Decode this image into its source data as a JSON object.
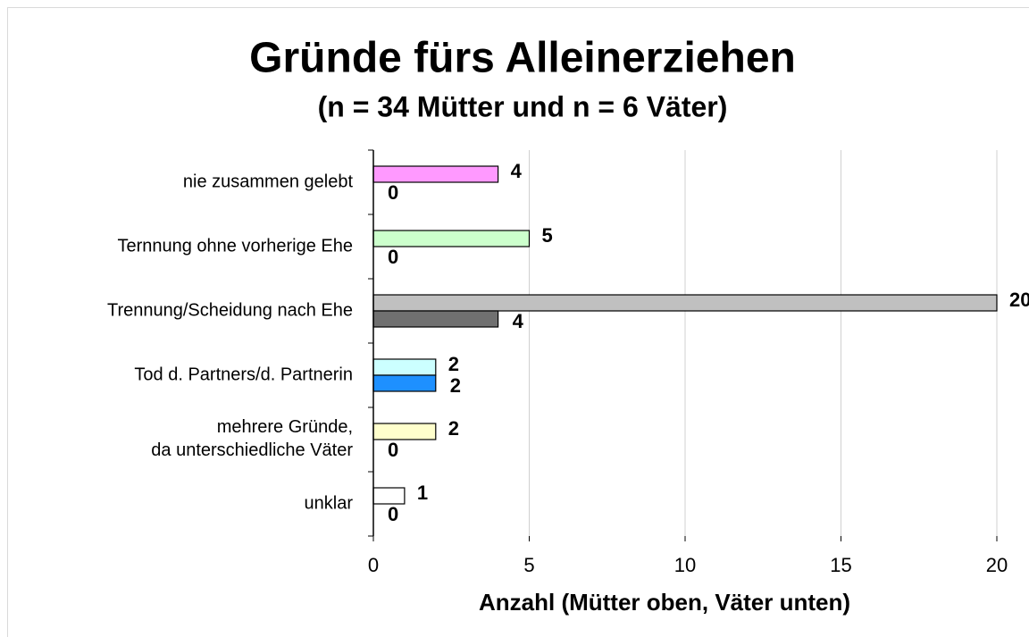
{
  "chart_data": {
    "type": "bar",
    "orientation": "horizontal",
    "title": "Gründe fürs Alleinerziehen",
    "subtitle": "(n = 34 Mütter und n = 6 Väter)",
    "x_label": "Anzahl (Mütter oben, Väter unten)",
    "categories": [
      "nie zusammen gelebt",
      "Ternnung ohne vorherige Ehe",
      "Trennung/Scheidung nach Ehe",
      "Tod d. Partners/d. Partnerin",
      "mehrere Gründe,\nda unterschiedliche Väter",
      "unklar"
    ],
    "series": [
      {
        "colors": [
          "#ff99ff",
          "#ccffcc",
          "#c0c0c0",
          "#ccffff",
          "#ffffcc",
          "#ffffff"
        ],
        "values": [
          4,
          5,
          20,
          2,
          2,
          1
        ]
      },
      {
        "colors": [
          "#cc33cc",
          "#33aa33",
          "#707070",
          "#1e90ff",
          "#cccc33",
          "#999999"
        ],
        "values": [
          0,
          0,
          4,
          2,
          0,
          0
        ]
      }
    ],
    "xlim": [
      0,
      20
    ],
    "xticks": [
      0,
      5,
      10,
      15,
      20
    ],
    "grid": true
  }
}
